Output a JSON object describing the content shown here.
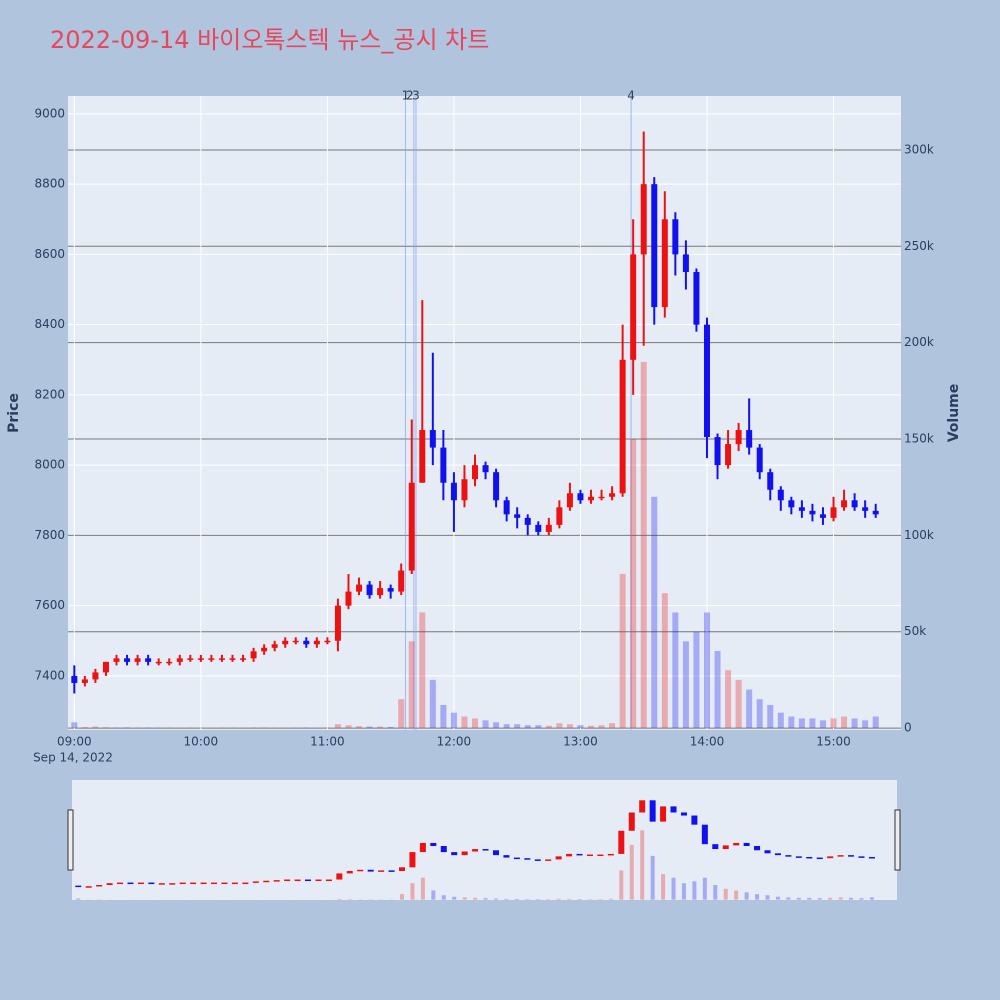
{
  "chart_data": {
    "type": "candlestick",
    "title": "2022-09-14 바이오톡스텍 뉴스_공시 차트",
    "y_label": "Price",
    "y2_label": "Volume",
    "x_date_label": "Sep 14, 2022",
    "up_color": "#ee1111",
    "down_color": "#1111ee",
    "xlim": [
      "08:57",
      "15:32"
    ],
    "xticks": [
      "09:00",
      "10:00",
      "11:00",
      "12:00",
      "13:00",
      "14:00",
      "15:00"
    ],
    "ylim": [
      7246,
      9051
    ],
    "yticks": [
      7400,
      7600,
      7800,
      8000,
      8200,
      8400,
      8600,
      8800,
      9000
    ],
    "y2lim": [
      -1000,
      328000
    ],
    "y2ticks": [
      0,
      {
        "value": 50000,
        "label": "50k"
      },
      {
        "value": 100000,
        "label": "100k"
      },
      {
        "value": 150000,
        "label": "150k"
      },
      {
        "value": 200000,
        "label": "200k"
      },
      {
        "value": 250000,
        "label": "250k"
      },
      {
        "value": 300000,
        "label": "300k"
      }
    ],
    "annotations": [
      {
        "x": "11:37",
        "text": "1"
      },
      {
        "x": "11:41",
        "text": "2"
      },
      {
        "x": "11:42",
        "text": "3"
      },
      {
        "x": "13:24",
        "text": "4"
      }
    ],
    "x": [
      "09:00",
      "09:05",
      "09:10",
      "09:15",
      "09:20",
      "09:25",
      "09:30",
      "09:35",
      "09:40",
      "09:45",
      "09:50",
      "09:55",
      "10:00",
      "10:05",
      "10:10",
      "10:15",
      "10:20",
      "10:25",
      "10:30",
      "10:35",
      "10:40",
      "10:45",
      "10:50",
      "10:55",
      "11:00",
      "11:05",
      "11:10",
      "11:15",
      "11:20",
      "11:25",
      "11:30",
      "11:35",
      "11:40",
      "11:45",
      "11:50",
      "11:55",
      "12:00",
      "12:05",
      "12:10",
      "12:15",
      "12:20",
      "12:25",
      "12:30",
      "12:35",
      "12:40",
      "12:45",
      "12:50",
      "12:55",
      "13:00",
      "13:05",
      "13:10",
      "13:15",
      "13:20",
      "13:25",
      "13:30",
      "13:35",
      "13:40",
      "13:45",
      "13:50",
      "13:55",
      "14:00",
      "14:05",
      "14:10",
      "14:15",
      "14:20",
      "14:25",
      "14:30",
      "14:35",
      "14:40",
      "14:45",
      "14:50",
      "14:55",
      "15:00",
      "15:05",
      "15:10",
      "15:15",
      "15:20"
    ],
    "open": [
      7400,
      7380,
      7390,
      7410,
      7440,
      7450,
      7440,
      7450,
      7440,
      7440,
      7440,
      7450,
      7450,
      7450,
      7450,
      7450,
      7450,
      7450,
      7470,
      7480,
      7490,
      7500,
      7500,
      7490,
      7500,
      7500,
      7600,
      7640,
      7660,
      7630,
      7650,
      7640,
      7700,
      7950,
      8100,
      8050,
      7950,
      7900,
      7960,
      8000,
      7980,
      7900,
      7860,
      7850,
      7830,
      7810,
      7830,
      7880,
      7920,
      7900,
      7910,
      7910,
      7920,
      8300,
      8600,
      8800,
      8450,
      8700,
      8600,
      8550,
      8400,
      8080,
      8000,
      8060,
      8100,
      8050,
      7980,
      7930,
      7900,
      7880,
      7870,
      7860,
      7850,
      7880,
      7900,
      7880,
      7870
    ],
    "high": [
      7430,
      7400,
      7420,
      7440,
      7460,
      7460,
      7460,
      7460,
      7450,
      7450,
      7460,
      7460,
      7460,
      7460,
      7460,
      7460,
      7460,
      7480,
      7490,
      7500,
      7510,
      7510,
      7510,
      7510,
      7510,
      7620,
      7690,
      7680,
      7670,
      7670,
      7660,
      7720,
      8130,
      8470,
      8320,
      8100,
      7980,
      8000,
      8030,
      8010,
      7990,
      7910,
      7880,
      7860,
      7840,
      7850,
      7900,
      7950,
      7930,
      7930,
      7930,
      7940,
      8400,
      8700,
      8950,
      8820,
      8780,
      8720,
      8640,
      8560,
      8420,
      8090,
      8100,
      8120,
      8190,
      8060,
      7990,
      7940,
      7910,
      7900,
      7890,
      7880,
      7910,
      7930,
      7920,
      7900,
      7890
    ],
    "low": [
      7350,
      7370,
      7380,
      7400,
      7430,
      7430,
      7430,
      7430,
      7430,
      7430,
      7430,
      7440,
      7440,
      7440,
      7440,
      7440,
      7440,
      7440,
      7460,
      7470,
      7480,
      7490,
      7480,
      7480,
      7490,
      7470,
      7590,
      7630,
      7620,
      7620,
      7620,
      7630,
      7690,
      7950,
      8000,
      7900,
      7810,
      7880,
      7940,
      7960,
      7880,
      7840,
      7820,
      7800,
      7800,
      7800,
      7820,
      7870,
      7890,
      7890,
      7900,
      7900,
      7910,
      8200,
      8340,
      8400,
      8420,
      8540,
      8500,
      8380,
      8020,
      7960,
      7990,
      8040,
      8030,
      7960,
      7900,
      7870,
      7860,
      7850,
      7840,
      7830,
      7840,
      7870,
      7870,
      7850,
      7850
    ],
    "close": [
      7380,
      7390,
      7410,
      7440,
      7450,
      7440,
      7450,
      7440,
      7440,
      7440,
      7450,
      7450,
      7450,
      7450,
      7450,
      7450,
      7450,
      7470,
      7480,
      7490,
      7500,
      7500,
      7490,
      7500,
      7500,
      7600,
      7640,
      7660,
      7630,
      7650,
      7640,
      7700,
      7950,
      8100,
      8050,
      7950,
      7900,
      7960,
      8000,
      7980,
      7900,
      7860,
      7850,
      7830,
      7810,
      7830,
      7880,
      7920,
      7900,
      7910,
      7910,
      7920,
      8300,
      8600,
      8800,
      8450,
      8700,
      8600,
      8550,
      8400,
      8080,
      8000,
      8060,
      8100,
      8050,
      7980,
      7930,
      7900,
      7880,
      7870,
      7860,
      7850,
      7880,
      7900,
      7880,
      7870,
      7860
    ],
    "volume": [
      3000,
      500,
      800,
      400,
      300,
      300,
      200,
      200,
      200,
      200,
      200,
      200,
      200,
      200,
      200,
      200,
      200,
      300,
      300,
      200,
      200,
      200,
      200,
      200,
      200,
      2000,
      1500,
      1000,
      800,
      800,
      600,
      15000,
      45000,
      60000,
      25000,
      12000,
      8000,
      6000,
      5000,
      4000,
      3000,
      2000,
      2000,
      1500,
      1500,
      1200,
      2500,
      2000,
      1500,
      1200,
      1500,
      2500,
      80000,
      150000,
      190000,
      120000,
      70000,
      60000,
      45000,
      50000,
      60000,
      40000,
      30000,
      25000,
      20000,
      15000,
      12000,
      8000,
      6000,
      5000,
      5000,
      4000,
      5000,
      6000,
      5000,
      4000,
      6000
    ]
  }
}
